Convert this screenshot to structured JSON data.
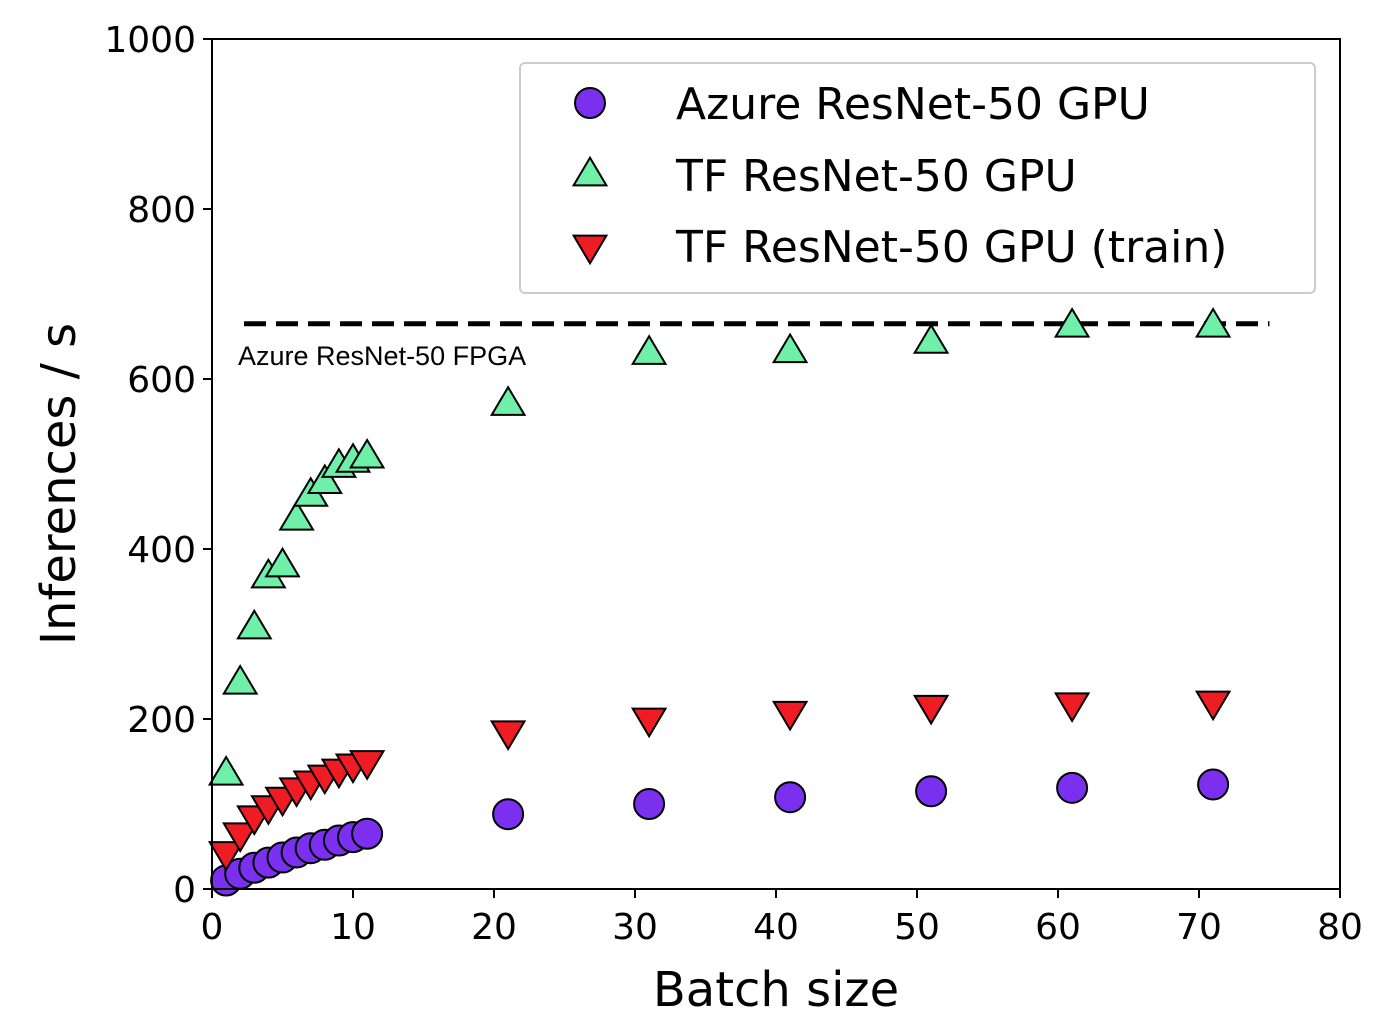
{
  "chart_data": {
    "type": "scatter",
    "xlabel": "Batch size",
    "ylabel": "Inferences / s",
    "xlim": [
      0,
      80
    ],
    "ylim": [
      0,
      1000
    ],
    "xticks": [
      0,
      10,
      20,
      30,
      40,
      50,
      60,
      70,
      80
    ],
    "yticks": [
      0,
      200,
      400,
      600,
      800,
      1000
    ],
    "grid": false,
    "legend_position": "top-right",
    "series": [
      {
        "name": "Azure ResNet-50 GPU",
        "marker": "circle",
        "color": "#7b2fef",
        "x": [
          1,
          2,
          3,
          4,
          5,
          6,
          7,
          8,
          9,
          10,
          11,
          21,
          31,
          41,
          51,
          61,
          71
        ],
        "y": [
          10,
          18,
          25,
          31,
          37,
          43,
          48,
          52,
          57,
          61,
          65,
          88,
          100,
          108,
          115,
          119,
          123
        ]
      },
      {
        "name": "TF ResNet-50 GPU",
        "marker": "triangle-up",
        "color": "#6ef0a8",
        "x": [
          1,
          2,
          3,
          4,
          5,
          6,
          7,
          8,
          9,
          10,
          11,
          21,
          31,
          41,
          51,
          61,
          71
        ],
        "y": [
          135,
          242,
          307,
          367,
          380,
          435,
          463,
          478,
          497,
          503,
          508,
          570,
          630,
          632,
          643,
          662,
          662
        ]
      },
      {
        "name": "TF ResNet-50 GPU (train)",
        "marker": "triangle-down",
        "color": "#ef1c23",
        "x": [
          1,
          2,
          3,
          4,
          5,
          6,
          7,
          8,
          9,
          10,
          11,
          21,
          31,
          41,
          51,
          61,
          71
        ],
        "y": [
          43,
          65,
          85,
          97,
          107,
          118,
          126,
          133,
          140,
          146,
          150,
          185,
          200,
          208,
          215,
          218,
          220
        ]
      }
    ],
    "reference_line": {
      "label": "Azure ResNet-50 FPGA",
      "y": 665,
      "x_range": [
        0,
        75
      ],
      "style": "dashed",
      "color": "#000000"
    }
  }
}
